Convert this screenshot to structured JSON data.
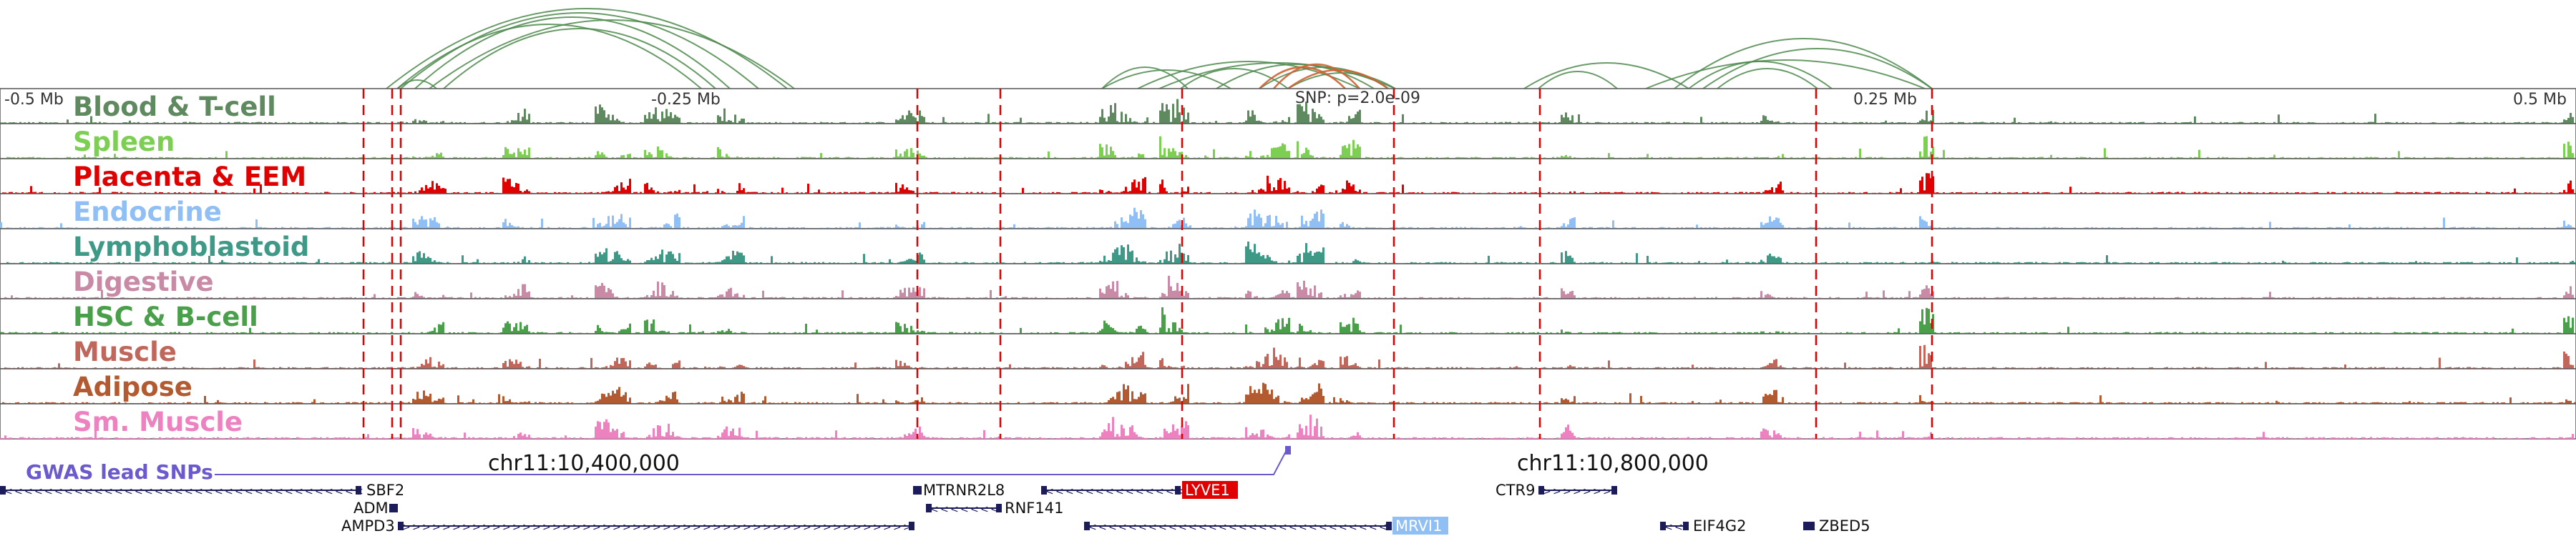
{
  "axis": {
    "left_label": "-0.5 Mb",
    "mid_left_label": "-0.25 Mb",
    "mid_right_label": "0.25 Mb",
    "right_label": "0.5 Mb",
    "snp_label": "SNP: p=2.0e-09"
  },
  "coords": {
    "left": "chr11:10,400,000",
    "right": "chr11:10,800,000"
  },
  "gwas_label": "GWAS lead SNPs",
  "tracks": [
    {
      "label": "Blood & T-cell",
      "color": "#5f8a5f"
    },
    {
      "label": "Spleen",
      "color": "#7ccf53"
    },
    {
      "label": "Placenta & EEM",
      "color": "#e00000"
    },
    {
      "label": "Endocrine",
      "color": "#8fbff5"
    },
    {
      "label": "Lymphoblastoid",
      "color": "#3e9986"
    },
    {
      "label": "Digestive",
      "color": "#c98aa6"
    },
    {
      "label": "HSC & B-cell",
      "color": "#4aa04a"
    },
    {
      "label": "Muscle",
      "color": "#c0665a"
    },
    {
      "label": "Adipose",
      "color": "#b35a30"
    },
    {
      "label": "Sm. Muscle",
      "color": "#ee82c0"
    }
  ],
  "genes": [
    {
      "name": "SBF2",
      "strand": "-"
    },
    {
      "name": "ADM",
      "strand": "+"
    },
    {
      "name": "AMPD3",
      "strand": "+"
    },
    {
      "name": "MTRNR2L8",
      "strand": "-"
    },
    {
      "name": "RNF141",
      "strand": "-"
    },
    {
      "name": "LYVE1",
      "strand": "-",
      "highlight": "#e00000"
    },
    {
      "name": "MRVI1",
      "strand": "-",
      "highlight": "#8fbff5"
    },
    {
      "name": "CTR9",
      "strand": "+"
    },
    {
      "name": "EIF4G2",
      "strand": "-"
    },
    {
      "name": "ZBED5",
      "strand": "-"
    }
  ],
  "colors": {
    "loop_main": "#4e8a4e",
    "loop_alt": "#d06030",
    "enhancer_line": "#e00000",
    "highlight_band": "#d9d9d9",
    "gene_body": "#1c1c5a",
    "gwas": "#6a5acd"
  }
}
